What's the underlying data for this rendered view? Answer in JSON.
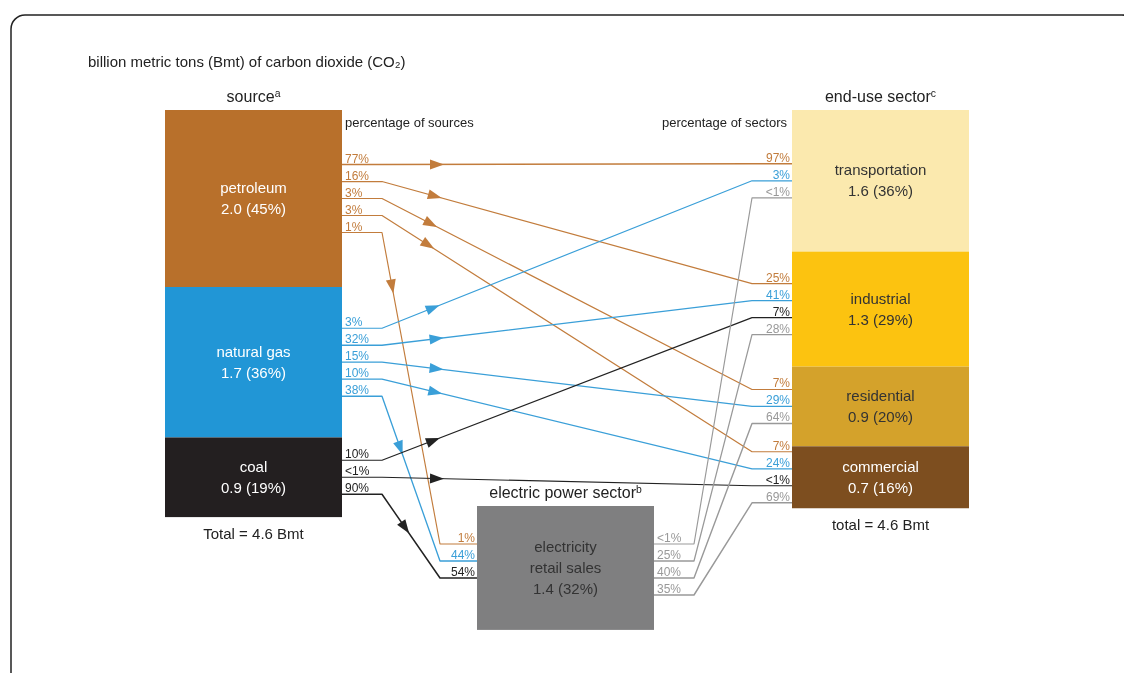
{
  "chart_data": {
    "type": "other",
    "title": "billion metric tons (Bmt) of carbon dioxide (CO₂)",
    "annotations": [
      "source$^{a}$",
      "electric power sector$^{b}$",
      "end-use sector$^{c}$",
      "Total = 4.6 Bmt",
      "total = 4.6 Bmt",
      "percentage of sources",
      "percentage of sectors"
    ],
    "categories": [
      "petroleum",
      "natural gas",
      "coal",
      "electricity retail sales",
      "transportation",
      "industrial",
      "residential",
      "commercial"
    ],
    "values": [
      2.0,
      1.7,
      0.9,
      1.4,
      1.6,
      1.3,
      0.9,
      0.7
    ],
    "value_labels": [
      "2.0  (45%)",
      "1.7  (36%)",
      "0.9  (19%)",
      "1.4  (32%)",
      "1.6  (36%)",
      "1.3  (29%)",
      "0.9  (20%)",
      "0.7  (16%)"
    ],
    "colors": [
      "#b8702b",
      "#2196d6",
      "#231f20",
      "#7f7f80",
      "#fbe9ae",
      "#fcc310",
      "#d4a22b",
      "#7d4e1f"
    ],
    "series": [
      {
        "color": "#c27c3c",
        "values": [
          77,
          null,
          null,
          null,
          97,
          null,
          null,
          null
        ],
        "value_labels": [
          "77%",
          null,
          null,
          null,
          "97%",
          null,
          null,
          null
        ]
      },
      {
        "color": "#c27c3c",
        "values": [
          16,
          null,
          null,
          null,
          null,
          25,
          null,
          null
        ],
        "value_labels": [
          "16%",
          null,
          null,
          null,
          null,
          "25%",
          null,
          null
        ]
      },
      {
        "color": "#c27c3c",
        "values": [
          3,
          null,
          null,
          null,
          null,
          null,
          7,
          null
        ],
        "value_labels": [
          "3%",
          null,
          null,
          null,
          null,
          null,
          "7%",
          null
        ]
      },
      {
        "color": "#c27c3c",
        "values": [
          3,
          null,
          null,
          null,
          null,
          null,
          null,
          7
        ],
        "value_labels": [
          "3%",
          null,
          null,
          null,
          null,
          null,
          null,
          "7%"
        ]
      },
      {
        "color": "#c27c3c",
        "values": [
          1,
          null,
          null,
          1,
          null,
          null,
          null,
          null
        ],
        "value_labels": [
          "1%",
          null,
          null,
          "1%",
          null,
          null,
          null,
          null
        ]
      },
      {
        "color": "#3a9fd8",
        "values": [
          null,
          3,
          null,
          null,
          3,
          null,
          null,
          null
        ],
        "value_labels": [
          null,
          "3%",
          null,
          null,
          "3%",
          null,
          null,
          null
        ]
      },
      {
        "color": "#3a9fd8",
        "values": [
          null,
          32,
          null,
          null,
          null,
          41,
          null,
          null
        ],
        "value_labels": [
          null,
          "32%",
          null,
          null,
          null,
          "41%",
          null,
          null
        ]
      },
      {
        "color": "#3a9fd8",
        "values": [
          null,
          15,
          null,
          null,
          null,
          null,
          29,
          null
        ],
        "value_labels": [
          null,
          "15%",
          null,
          null,
          null,
          null,
          "29%",
          null
        ]
      },
      {
        "color": "#3a9fd8",
        "values": [
          null,
          10,
          null,
          null,
          null,
          null,
          null,
          24
        ],
        "value_labels": [
          null,
          "10%",
          null,
          null,
          null,
          null,
          null,
          "24%"
        ]
      },
      {
        "color": "#3a9fd8",
        "values": [
          null,
          38,
          null,
          44,
          null,
          null,
          null,
          null
        ],
        "value_labels": [
          null,
          "38%",
          null,
          "44%",
          null,
          null,
          null,
          null
        ]
      },
      {
        "color": "#222222",
        "values": [
          null,
          null,
          10,
          null,
          null,
          7,
          null,
          null
        ],
        "value_labels": [
          null,
          null,
          "10%",
          null,
          null,
          "7%",
          null,
          null
        ]
      },
      {
        "color": "#222222",
        "values": [
          null,
          null,
          null,
          null,
          null,
          null,
          null,
          null
        ],
        "value_labels": [
          null,
          null,
          "<1%",
          null,
          null,
          null,
          null,
          "<1%"
        ]
      },
      {
        "color": "#222222",
        "values": [
          null,
          null,
          90,
          54,
          null,
          null,
          null,
          null
        ],
        "value_labels": [
          null,
          null,
          "90%",
          "54%",
          null,
          null,
          null,
          null
        ]
      },
      {
        "color": "#999999",
        "values": [
          null,
          null,
          null,
          null,
          null,
          null,
          null,
          null
        ],
        "value_labels": [
          null,
          null,
          null,
          "<1%",
          "<1%",
          null,
          null,
          null
        ]
      },
      {
        "color": "#999999",
        "values": [
          null,
          null,
          null,
          25,
          null,
          28,
          null,
          null
        ],
        "value_labels": [
          null,
          null,
          null,
          "25%",
          null,
          "28%",
          null,
          null
        ]
      },
      {
        "color": "#999999",
        "values": [
          null,
          null,
          null,
          40,
          null,
          null,
          64,
          null
        ],
        "value_labels": [
          null,
          null,
          null,
          "40%",
          null,
          null,
          "64%",
          null
        ]
      },
      {
        "color": "#999999",
        "values": [
          null,
          null,
          null,
          35,
          null,
          null,
          null,
          69
        ],
        "value_labels": [
          null,
          null,
          null,
          "35%",
          null,
          null,
          null,
          "69%"
        ]
      }
    ]
  }
}
